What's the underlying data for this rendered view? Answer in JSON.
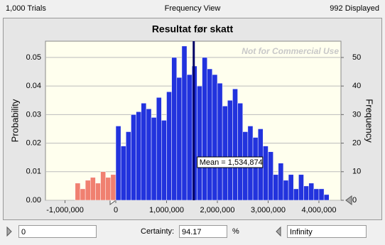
{
  "header": {
    "trials": "1,000 Trials",
    "view": "Frequency View",
    "displayed": "992 Displayed"
  },
  "chart_data": {
    "type": "histogram",
    "title": "Resultat før skatt",
    "y_label": "Probability",
    "y2_label": "Frequency",
    "watermark": "Not for Commercial Use",
    "bins": [
      -800000,
      -700000,
      -600000,
      -500000,
      -400000,
      -300000,
      -200000,
      -100000,
      0,
      100000,
      200000,
      300000,
      400000,
      500000,
      600000,
      700000,
      800000,
      900000,
      1000000,
      1100000,
      1200000,
      1300000,
      1400000,
      1500000,
      1600000,
      1700000,
      1800000,
      1900000,
      2000000,
      2100000,
      2200000,
      2300000,
      2400000,
      2500000,
      2600000,
      2700000,
      2800000,
      2900000,
      3000000,
      3100000,
      3200000,
      3300000,
      3400000,
      3500000,
      3600000,
      3700000,
      3800000,
      3900000,
      4000000,
      4100000,
      4200000
    ],
    "values": [
      6,
      4,
      7,
      8,
      6,
      10,
      8,
      9,
      26,
      19,
      24,
      30,
      31,
      34,
      32,
      29,
      36,
      28,
      38,
      50,
      43,
      54,
      44,
      47,
      40,
      50,
      46,
      44,
      41,
      33,
      35,
      39,
      34,
      24,
      26,
      22,
      25,
      19,
      17,
      9,
      13,
      7,
      9,
      4,
      9,
      5,
      6,
      4,
      4,
      2
    ],
    "axis": "y2",
    "colors": {
      "outside": "#f08070",
      "inside": "#2233dd"
    },
    "mean": {
      "value": 1534874,
      "label": "Mean = 1,534,874",
      "color": "#000066"
    },
    "xlim": [
      -1385000,
      4434000
    ],
    "xticks": [
      {
        "value": -1000000,
        "label": "-1,000,000"
      },
      0,
      {
        "value": 1000000,
        "label": "1,000,000"
      },
      {
        "value": 2000000,
        "label": "2,000,000"
      },
      {
        "value": 3000000,
        "label": "3,000,000"
      },
      {
        "value": 4000000,
        "label": "4,000,000"
      }
    ],
    "ylim": [
      0,
      0.0557
    ],
    "yticks": [
      {
        "value": 0,
        "label": "0.00"
      },
      {
        "value": 0.01,
        "label": "0.01"
      },
      {
        "value": 0.02,
        "label": "0.02"
      },
      {
        "value": 0.03,
        "label": "0.03"
      },
      {
        "value": 0.04,
        "label": "0.04"
      },
      {
        "value": 0.05,
        "label": "0.05"
      }
    ],
    "y2lim": [
      0,
      55.7
    ],
    "y2ticks": [
      0,
      10,
      20,
      30,
      40,
      50
    ],
    "grid": true
  },
  "footer": {
    "lower": 0,
    "certainty_label": "Certainty:",
    "certainty": 94.17,
    "percent": "%",
    "upper": "Infinity"
  }
}
